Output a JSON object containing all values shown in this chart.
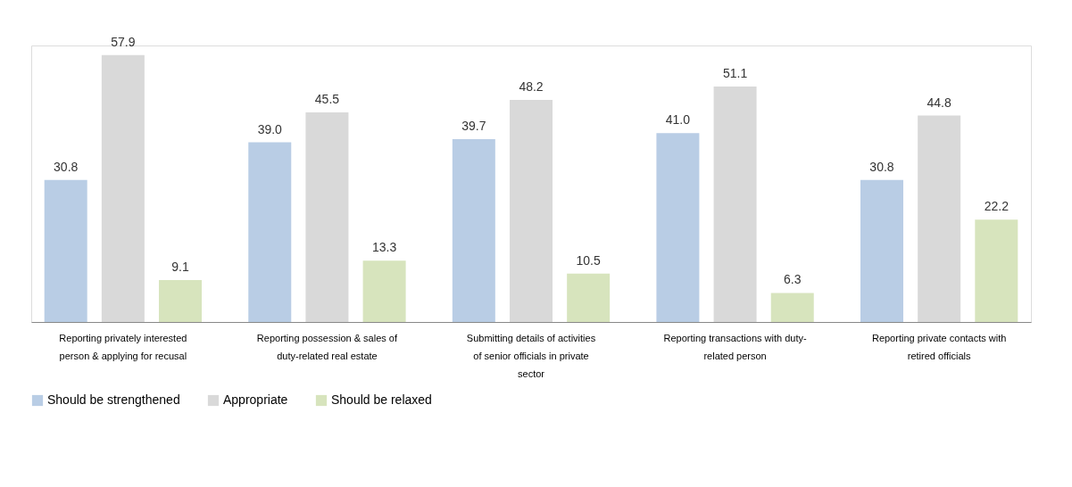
{
  "chart_data": {
    "type": "bar",
    "categories": [
      "Reporting privately interested person & applying for recusal",
      "Reporting possession & sales of duty-related real estate",
      "Submitting details of activities of senior officials in private sector",
      "Reporting transactions with duty-related person",
      "Reporting private contacts with retired officials"
    ],
    "series": [
      {
        "name": "Should be strengthened",
        "color": "#b9cde5",
        "values": [
          30.8,
          39.0,
          39.7,
          41.0,
          30.8
        ],
        "value_labels": [
          "30.8",
          "39.0",
          "39.7",
          "41.0",
          "30.8"
        ]
      },
      {
        "name": "Appropriate",
        "color": "#d9d9d9",
        "values": [
          57.9,
          45.5,
          48.2,
          51.1,
          44.8
        ],
        "value_labels": [
          "57.9",
          "45.5",
          "48.2",
          "51.1",
          "44.8"
        ]
      },
      {
        "name": "Should be relaxed",
        "color": "#d7e4bd",
        "values": [
          9.1,
          13.3,
          10.5,
          6.3,
          22.2
        ],
        "value_labels": [
          "9.1",
          "13.3",
          "10.5",
          "6.3",
          "22.2"
        ]
      }
    ],
    "legend": "bottom",
    "grid": false
  }
}
